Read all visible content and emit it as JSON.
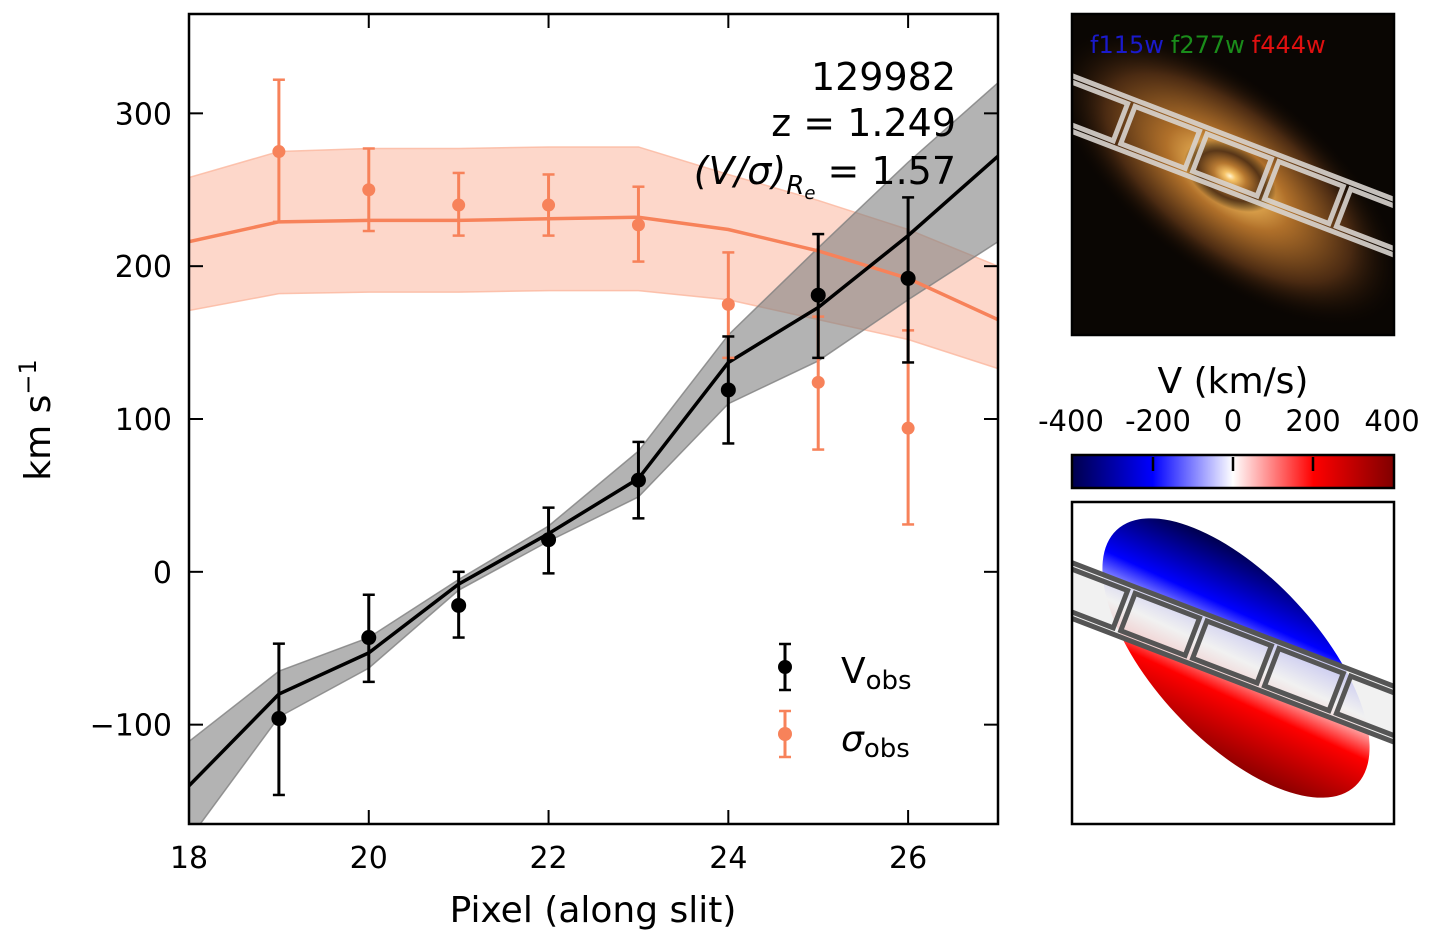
{
  "chart_data": {
    "type": "line",
    "title": "",
    "xlabel": "Pixel (along slit)",
    "ylabel": "km s⁻¹",
    "xlim": [
      18,
      27
    ],
    "ylim": [
      -165,
      365
    ],
    "xticks": [
      18,
      20,
      22,
      24,
      26
    ],
    "yticks": [
      -100,
      0,
      100,
      200,
      300
    ],
    "ytick_labels": [
      "−100",
      "0",
      "100",
      "200",
      "300"
    ],
    "grid": false,
    "legend_position": "bottom-right",
    "annotations": {
      "id": "129982",
      "redshift": "z = 1.249",
      "vsigma_prefix": "(V/σ)",
      "vsigma_sub": "R",
      "vsigma_subsub": "e",
      "vsigma_value": " = 1.57"
    },
    "series": [
      {
        "name": "V_obs",
        "legend_main": "V",
        "legend_sub": "obs",
        "color": "#000000",
        "x": [
          19,
          20,
          21,
          22,
          23,
          24,
          25,
          26
        ],
        "y": [
          -96,
          -43,
          -22,
          21,
          60,
          119,
          181,
          192
        ],
        "yerr_low": [
          -146,
          -72,
          -43,
          -1,
          35,
          84,
          140,
          137
        ],
        "yerr_high": [
          -47,
          -15,
          0,
          42,
          85,
          154,
          221,
          245
        ]
      },
      {
        "name": "sigma_obs",
        "legend_main": "σ",
        "legend_sub": "obs",
        "color": "#f7825a",
        "x": [
          19,
          20,
          21,
          22,
          23,
          24,
          25,
          26
        ],
        "y": [
          275,
          250,
          240,
          240,
          227,
          175,
          124,
          94
        ],
        "yerr_low": [
          229,
          223,
          220,
          220,
          203,
          140,
          80,
          31
        ],
        "yerr_high": [
          322,
          277,
          261,
          260,
          252,
          209,
          167,
          158
        ]
      }
    ],
    "models": [
      {
        "name": "V_model",
        "color": "#000000",
        "band_color": "#808080",
        "x": [
          18,
          19,
          20,
          21,
          22,
          23,
          24,
          25,
          26,
          27
        ],
        "y": [
          -140,
          -80,
          -53,
          -8,
          25,
          61,
          137,
          173,
          220,
          272
        ],
        "band_low": [
          -175,
          -95,
          -63,
          -12,
          20,
          49,
          110,
          138,
          178,
          216
        ],
        "band_high": [
          -111,
          -65,
          -43,
          -5,
          30,
          79,
          155,
          212,
          268,
          320
        ]
      },
      {
        "name": "sigma_model",
        "color": "#f7825a",
        "band_color": "#fbb79e",
        "x": [
          18,
          19,
          20,
          21,
          22,
          23,
          24,
          25,
          26,
          27
        ],
        "y": [
          216,
          229,
          230,
          230,
          231,
          232,
          224,
          210,
          192,
          165
        ],
        "band_low": [
          171,
          182,
          183,
          183,
          184,
          184,
          178,
          165,
          152,
          133
        ],
        "band_high": [
          258,
          275,
          277,
          277,
          278,
          278,
          260,
          243,
          224,
          200
        ]
      }
    ]
  },
  "image_panel": {
    "filters": [
      {
        "label": "f115w",
        "color": "#1a1acc"
      },
      {
        "label": "f277w",
        "color": "#1a8c1a"
      },
      {
        "label": "f444w",
        "color": "#e01010"
      }
    ]
  },
  "colorbar": {
    "title": "V (km/s)",
    "tick_labels": [
      "-400",
      "-200",
      "0",
      "200",
      "400"
    ],
    "range": [
      -400,
      400
    ],
    "colormap": "seismic"
  },
  "velocity_map": {
    "description": "velocity field map"
  }
}
